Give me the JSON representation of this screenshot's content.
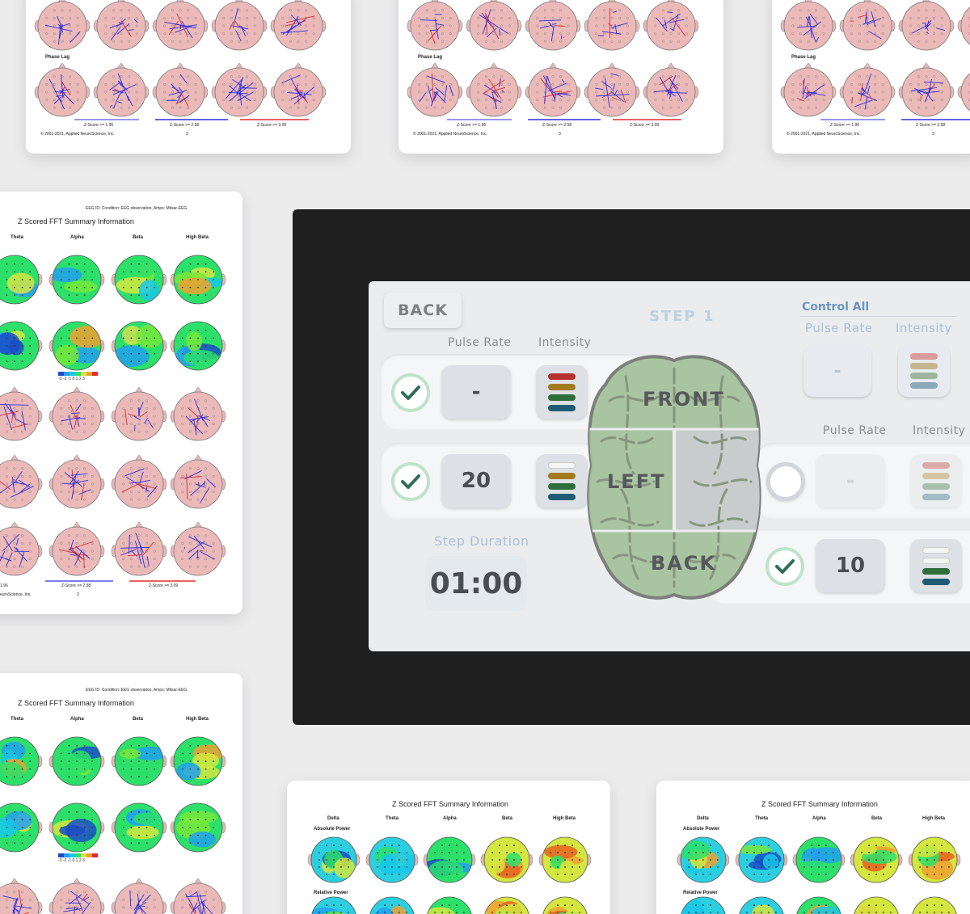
{
  "reports": {
    "phase_lag": "Phase Lag",
    "copyright": "© 2001-2021, Applied NeuroScience, Inc.",
    "page_no": "3",
    "zscore_1": "Z-Score >= 1.96",
    "zscore_2": "Z-Score >= 2.58",
    "zscore_3": "Z-Score >= 3.09",
    "eeg_header": "EEG ID:  Condition: EEG observation, Amps: Mitsar-EEG",
    "fft_title": "Z Scored FFT Summary Information",
    "bands_4": [
      "Theta",
      "Alpha",
      "Beta",
      "High Beta"
    ],
    "bands_5": [
      "Delta",
      "Theta",
      "Alpha",
      "Beta",
      "High Beta"
    ],
    "absolute_power": "Absolute Power",
    "relative_power": "Relative Power",
    "scale": "-3 -2 -1  0  1  2  3",
    "side_ft1": "1.96",
    "side_ft2": "euroScience, Inc."
  },
  "app": {
    "back_button": "BACK",
    "step_title": "STEP 1",
    "control_all": {
      "title": "Control All",
      "pulse_rate_label": "Pulse Rate",
      "intensity_label": "Intensity",
      "pulse_rate_value": "-"
    },
    "headers": {
      "pulse_rate": "Pulse Rate",
      "intensity": "Intensity"
    },
    "rows": {
      "front": {
        "region": "FRONT",
        "pulse_rate": "-",
        "checked": true,
        "intensity_levels": 4
      },
      "left": {
        "region": "LEFT",
        "pulse_rate": "20",
        "checked": true,
        "intensity_levels": 3
      },
      "right": {
        "pulse_rate": "-",
        "checked": false,
        "intensity_levels": 4
      },
      "back": {
        "region": "BACK",
        "pulse_rate": "10",
        "checked": true,
        "intensity_levels": 2
      }
    },
    "step_duration": {
      "label": "Step Duration",
      "value": "01:00"
    },
    "colors": {
      "intensity_1": "#1f5c74",
      "intensity_2": "#2e6e3a",
      "intensity_3": "#a47a1e",
      "intensity_4": "#b8312f",
      "brain_fill": "#a9c4a0",
      "check_green": "#2f6e55",
      "accent_blue": "#6a96c2"
    }
  }
}
